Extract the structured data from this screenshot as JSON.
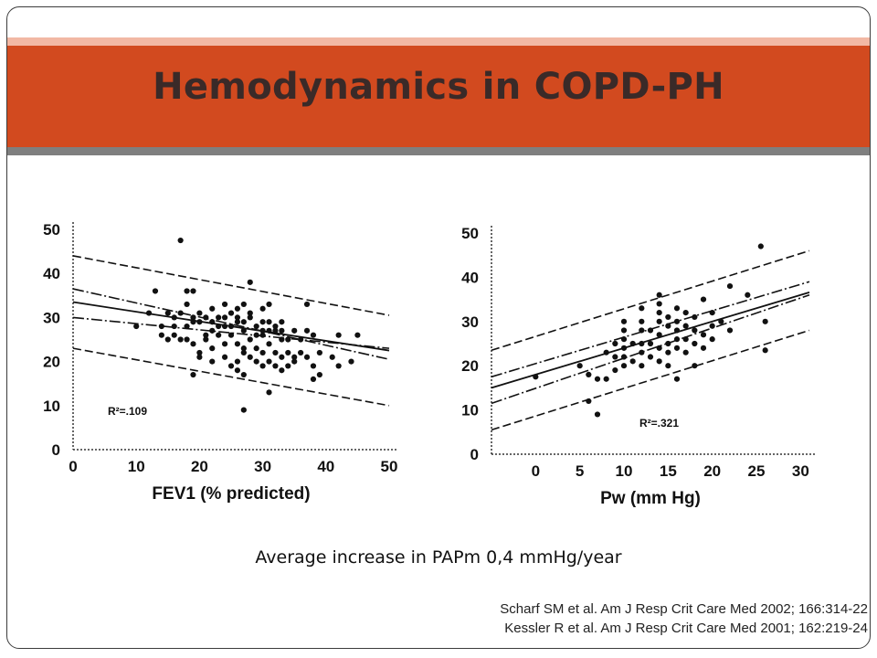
{
  "slide": {
    "title": "Hemodynamics in COPD-PH",
    "subtitle": "Average increase in PAPm 0,4 mmHg/year",
    "references": [
      "Scharf SM et al. Am J Resp Crit Care Med 2002; 166:314-22",
      "Kessler R et al. Am J Resp Crit Care Med 2001; 162:219-24"
    ]
  },
  "chart_data": [
    {
      "type": "scatter",
      "xlabel": "FEV1 (% predicted)",
      "ylabel": "",
      "xlim": [
        0,
        50
      ],
      "ylim": [
        0,
        50
      ],
      "xticks": [
        0,
        10,
        20,
        30,
        40,
        50
      ],
      "yticks": [
        0,
        10,
        20,
        30,
        40,
        50
      ],
      "annotation": "R²=.109",
      "grid": false,
      "regression": {
        "intercept": 33.5,
        "slope": -0.22
      },
      "confidence_band": [
        {
          "x": [
            0,
            50
          ],
          "y": [
            36.5,
            20.5
          ]
        },
        {
          "x": [
            0,
            50
          ],
          "y": [
            30.0,
            23.0
          ]
        }
      ],
      "prediction_band": [
        {
          "x": [
            0,
            50
          ],
          "y": [
            44.0,
            30.5
          ]
        },
        {
          "x": [
            0,
            50
          ],
          "y": [
            23.0,
            10.0
          ]
        }
      ],
      "points": [
        [
          17,
          47.5
        ],
        [
          13,
          36
        ],
        [
          18,
          36
        ],
        [
          19,
          36
        ],
        [
          28,
          38
        ],
        [
          22,
          32
        ],
        [
          24,
          33
        ],
        [
          26,
          32
        ],
        [
          27,
          33
        ],
        [
          30,
          32
        ],
        [
          31,
          33
        ],
        [
          37,
          33
        ],
        [
          10,
          28
        ],
        [
          12,
          31
        ],
        [
          14,
          28
        ],
        [
          15,
          31
        ],
        [
          16,
          26
        ],
        [
          17,
          25
        ],
        [
          18,
          28
        ],
        [
          19,
          30
        ],
        [
          20,
          29
        ],
        [
          21,
          26
        ],
        [
          22,
          27
        ],
        [
          23,
          30
        ],
        [
          24,
          28
        ],
        [
          25,
          26
        ],
        [
          26,
          29
        ],
        [
          27,
          27
        ],
        [
          28,
          30
        ],
        [
          29,
          28
        ],
        [
          30,
          26
        ],
        [
          31,
          29
        ],
        [
          32,
          27
        ],
        [
          33,
          29
        ],
        [
          34,
          25
        ],
        [
          35,
          27
        ],
        [
          14,
          26
        ],
        [
          15,
          25
        ],
        [
          16,
          30
        ],
        [
          18,
          25
        ],
        [
          19,
          24
        ],
        [
          20,
          22
        ],
        [
          21,
          25
        ],
        [
          22,
          23
        ],
        [
          23,
          26
        ],
        [
          24,
          24
        ],
        [
          25,
          28
        ],
        [
          26,
          24
        ],
        [
          27,
          22
        ],
        [
          28,
          25
        ],
        [
          29,
          23
        ],
        [
          30,
          27
        ],
        [
          31,
          24
        ],
        [
          32,
          22
        ],
        [
          33,
          25
        ],
        [
          34,
          22
        ],
        [
          35,
          21
        ],
        [
          36,
          25
        ],
        [
          37,
          27
        ],
        [
          38,
          26
        ],
        [
          39,
          22
        ],
        [
          20,
          21
        ],
        [
          22,
          20
        ],
        [
          24,
          21
        ],
        [
          25,
          19
        ],
        [
          26,
          20
        ],
        [
          27,
          23
        ],
        [
          28,
          21
        ],
        [
          29,
          20
        ],
        [
          30,
          22
        ],
        [
          31,
          20
        ],
        [
          32,
          19
        ],
        [
          33,
          21
        ],
        [
          34,
          19
        ],
        [
          35,
          20
        ],
        [
          36,
          22
        ],
        [
          37,
          21
        ],
        [
          38,
          19
        ],
        [
          16,
          28
        ],
        [
          17,
          31
        ],
        [
          18,
          33
        ],
        [
          19,
          29
        ],
        [
          20,
          31
        ],
        [
          21,
          30
        ],
        [
          22,
          29
        ],
        [
          23,
          28
        ],
        [
          24,
          30
        ],
        [
          25,
          31
        ],
        [
          26,
          30
        ],
        [
          27,
          29
        ],
        [
          28,
          31
        ],
        [
          29,
          26
        ],
        [
          30,
          29
        ],
        [
          31,
          27
        ],
        [
          32,
          28
        ],
        [
          33,
          27
        ],
        [
          19,
          17
        ],
        [
          26,
          18
        ],
        [
          27,
          17
        ],
        [
          30,
          19
        ],
        [
          33,
          18
        ],
        [
          38,
          16
        ],
        [
          39,
          17
        ],
        [
          41,
          21
        ],
        [
          42,
          19
        ],
        [
          44,
          20
        ],
        [
          45,
          26
        ],
        [
          42,
          26
        ],
        [
          27,
          9
        ],
        [
          31,
          13
        ]
      ]
    },
    {
      "type": "scatter",
      "xlabel": "Pw (mm Hg)",
      "ylabel": "",
      "xlim": [
        -5,
        31
      ],
      "ylim": [
        0,
        50
      ],
      "xticks": [
        0,
        5,
        10,
        15,
        20,
        25,
        30
      ],
      "yticks": [
        0,
        10,
        20,
        30,
        40,
        50
      ],
      "annotation": "R²=.321",
      "grid": false,
      "regression": {
        "intercept": 18.0,
        "slope": 0.6
      },
      "confidence_band": [
        {
          "x": [
            -5,
            31
          ],
          "y": [
            17.5,
            39.0
          ]
        },
        {
          "x": [
            -5,
            31
          ],
          "y": [
            11.5,
            36.0
          ]
        }
      ],
      "prediction_band": [
        {
          "x": [
            -5,
            31
          ],
          "y": [
            23.5,
            46.0
          ]
        },
        {
          "x": [
            -5,
            31
          ],
          "y": [
            5.5,
            28.0
          ]
        }
      ],
      "points": [
        [
          0,
          17.5
        ],
        [
          5,
          20
        ],
        [
          6,
          12
        ],
        [
          6,
          18
        ],
        [
          7,
          9
        ],
        [
          7,
          17
        ],
        [
          8,
          23
        ],
        [
          8,
          17
        ],
        [
          9,
          25
        ],
        [
          9,
          22
        ],
        [
          9,
          19
        ],
        [
          10,
          30
        ],
        [
          10,
          28
        ],
        [
          10,
          26
        ],
        [
          10,
          24
        ],
        [
          10,
          22
        ],
        [
          10,
          20
        ],
        [
          11,
          25
        ],
        [
          11,
          21
        ],
        [
          12,
          33
        ],
        [
          12,
          30
        ],
        [
          12,
          28
        ],
        [
          12,
          25
        ],
        [
          12,
          23
        ],
        [
          12,
          20
        ],
        [
          13,
          28
        ],
        [
          13,
          25
        ],
        [
          13,
          22
        ],
        [
          14,
          36
        ],
        [
          14,
          34
        ],
        [
          14,
          32
        ],
        [
          14,
          30
        ],
        [
          14,
          27
        ],
        [
          14,
          24
        ],
        [
          14,
          21
        ],
        [
          15,
          31
        ],
        [
          15,
          29
        ],
        [
          15,
          25
        ],
        [
          15,
          23
        ],
        [
          15,
          20
        ],
        [
          16,
          33
        ],
        [
          16,
          30
        ],
        [
          16,
          28
        ],
        [
          16,
          26
        ],
        [
          16,
          24
        ],
        [
          16,
          17
        ],
        [
          17,
          32
        ],
        [
          17,
          29
        ],
        [
          17,
          26
        ],
        [
          17,
          23
        ],
        [
          18,
          31
        ],
        [
          18,
          28
        ],
        [
          18,
          25
        ],
        [
          18,
          20
        ],
        [
          19,
          35
        ],
        [
          19,
          27
        ],
        [
          19,
          24
        ],
        [
          20,
          32
        ],
        [
          20,
          29
        ],
        [
          20,
          26
        ],
        [
          21,
          30
        ],
        [
          22,
          28
        ],
        [
          22,
          38
        ],
        [
          24,
          36
        ],
        [
          25.5,
          47
        ],
        [
          26,
          30
        ],
        [
          26,
          23.5
        ]
      ]
    }
  ]
}
